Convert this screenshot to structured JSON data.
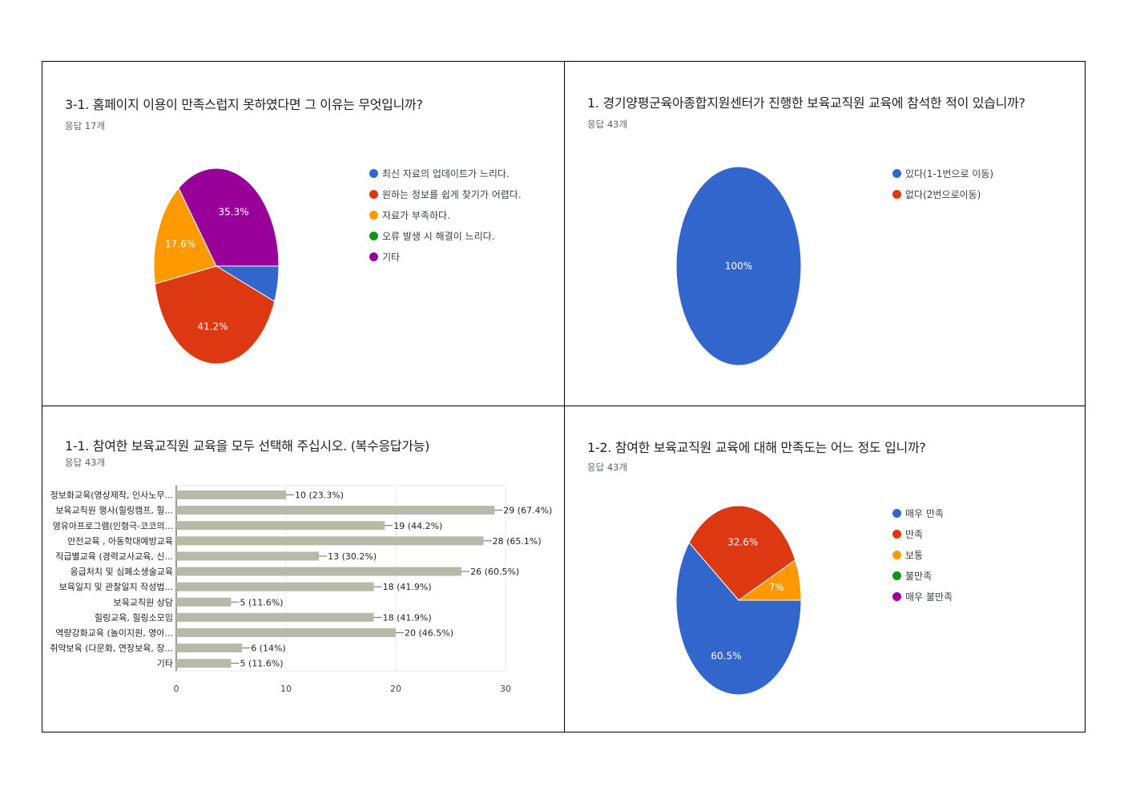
{
  "panels": {
    "p1": {
      "title": "3-1. 홈페이지 이용이 만족스럽지 못하였다면 그 이유는 무엇입니까?",
      "responses": "응답 17개"
    },
    "p2": {
      "title": "1. 경기양평군육아종합지원센터가 진행한 보육교직원 교육에 참석한 적이 있습니까?",
      "responses": "응답 43개"
    },
    "p3": {
      "title": "1-1. 참여한 보육교직원 교육을 모두 선택해 주십시오. (복수응답가능)",
      "responses": "응답 43개"
    },
    "p4": {
      "title": "1-2. 참여한 보육교직원 교육에 대해 만족도는 어느 정도 입니까?",
      "responses": "응답 43개"
    }
  },
  "chart_data": [
    {
      "type": "pie",
      "categories": [
        "최신 자료의 업데이트가 느리다.",
        "원하는 정보를 쉽게 찾기가 어렵다.",
        "자료가 부족하다.",
        "오류 발생 시 해결이 느리다.",
        "기타"
      ],
      "values": [
        5.9,
        41.2,
        17.6,
        0,
        35.3
      ],
      "labels": [
        "",
        "41.2%",
        "17.6%",
        "",
        "35.3%"
      ],
      "colors": [
        "#3366cc",
        "#dc3912",
        "#ff9900",
        "#109618",
        "#990099"
      ],
      "legend_position": "right"
    },
    {
      "type": "pie",
      "categories": [
        "있다(1-1번으로 이동)",
        "없다(2번으로이동)"
      ],
      "values": [
        100,
        0
      ],
      "labels": [
        "100%",
        ""
      ],
      "colors": [
        "#3366cc",
        "#dc3912"
      ],
      "legend_position": "right"
    },
    {
      "type": "bar",
      "orientation": "horizontal",
      "categories": [
        "정보화교육(영상제작, 인사노무...",
        "보육교직원 행사(힐링캠프, 힐...",
        "영유아프로그램(인형극-코코의...",
        "안전교육 , 아동학대예방교육",
        "직급별교육 (경력교사교육, 신...",
        "응급처치 및 심폐소생술교육",
        "보육일지 및 관찰일지 작성법...",
        "보육교직원 상담",
        "힐링교육, 힐링소모임",
        "역량강화교육 (놀이지원, 영아...",
        "취약보육 (다문화, 연장보육, 장...",
        "기타"
      ],
      "values": [
        10,
        29,
        19,
        28,
        13,
        26,
        18,
        5,
        18,
        20,
        6,
        5
      ],
      "labels": [
        "10 (23.3%)",
        "29 (67.4%)",
        "19 (44.2%)",
        "28 (65.1%)",
        "13 (30.2%)",
        "26 (60.5%)",
        "18 (41.9%)",
        "5 (11.6%)",
        "18 (41.9%)",
        "20 (46.5%)",
        "6 (14%)",
        "5 (11.6%)"
      ],
      "xticks": [
        "0",
        "10",
        "20",
        "30"
      ],
      "xlim": [
        0,
        30
      ],
      "color": "#b7baa8",
      "grid": true
    },
    {
      "type": "pie",
      "categories": [
        "매우 만족",
        "만족",
        "보통",
        "불만족",
        "매우 불만족"
      ],
      "values": [
        60.5,
        32.6,
        7,
        0,
        0
      ],
      "labels": [
        "60.5%",
        "32.6%",
        "7%",
        "",
        ""
      ],
      "colors": [
        "#3366cc",
        "#dc3912",
        "#ff9900",
        "#109618",
        "#990099"
      ],
      "legend_position": "right"
    }
  ]
}
